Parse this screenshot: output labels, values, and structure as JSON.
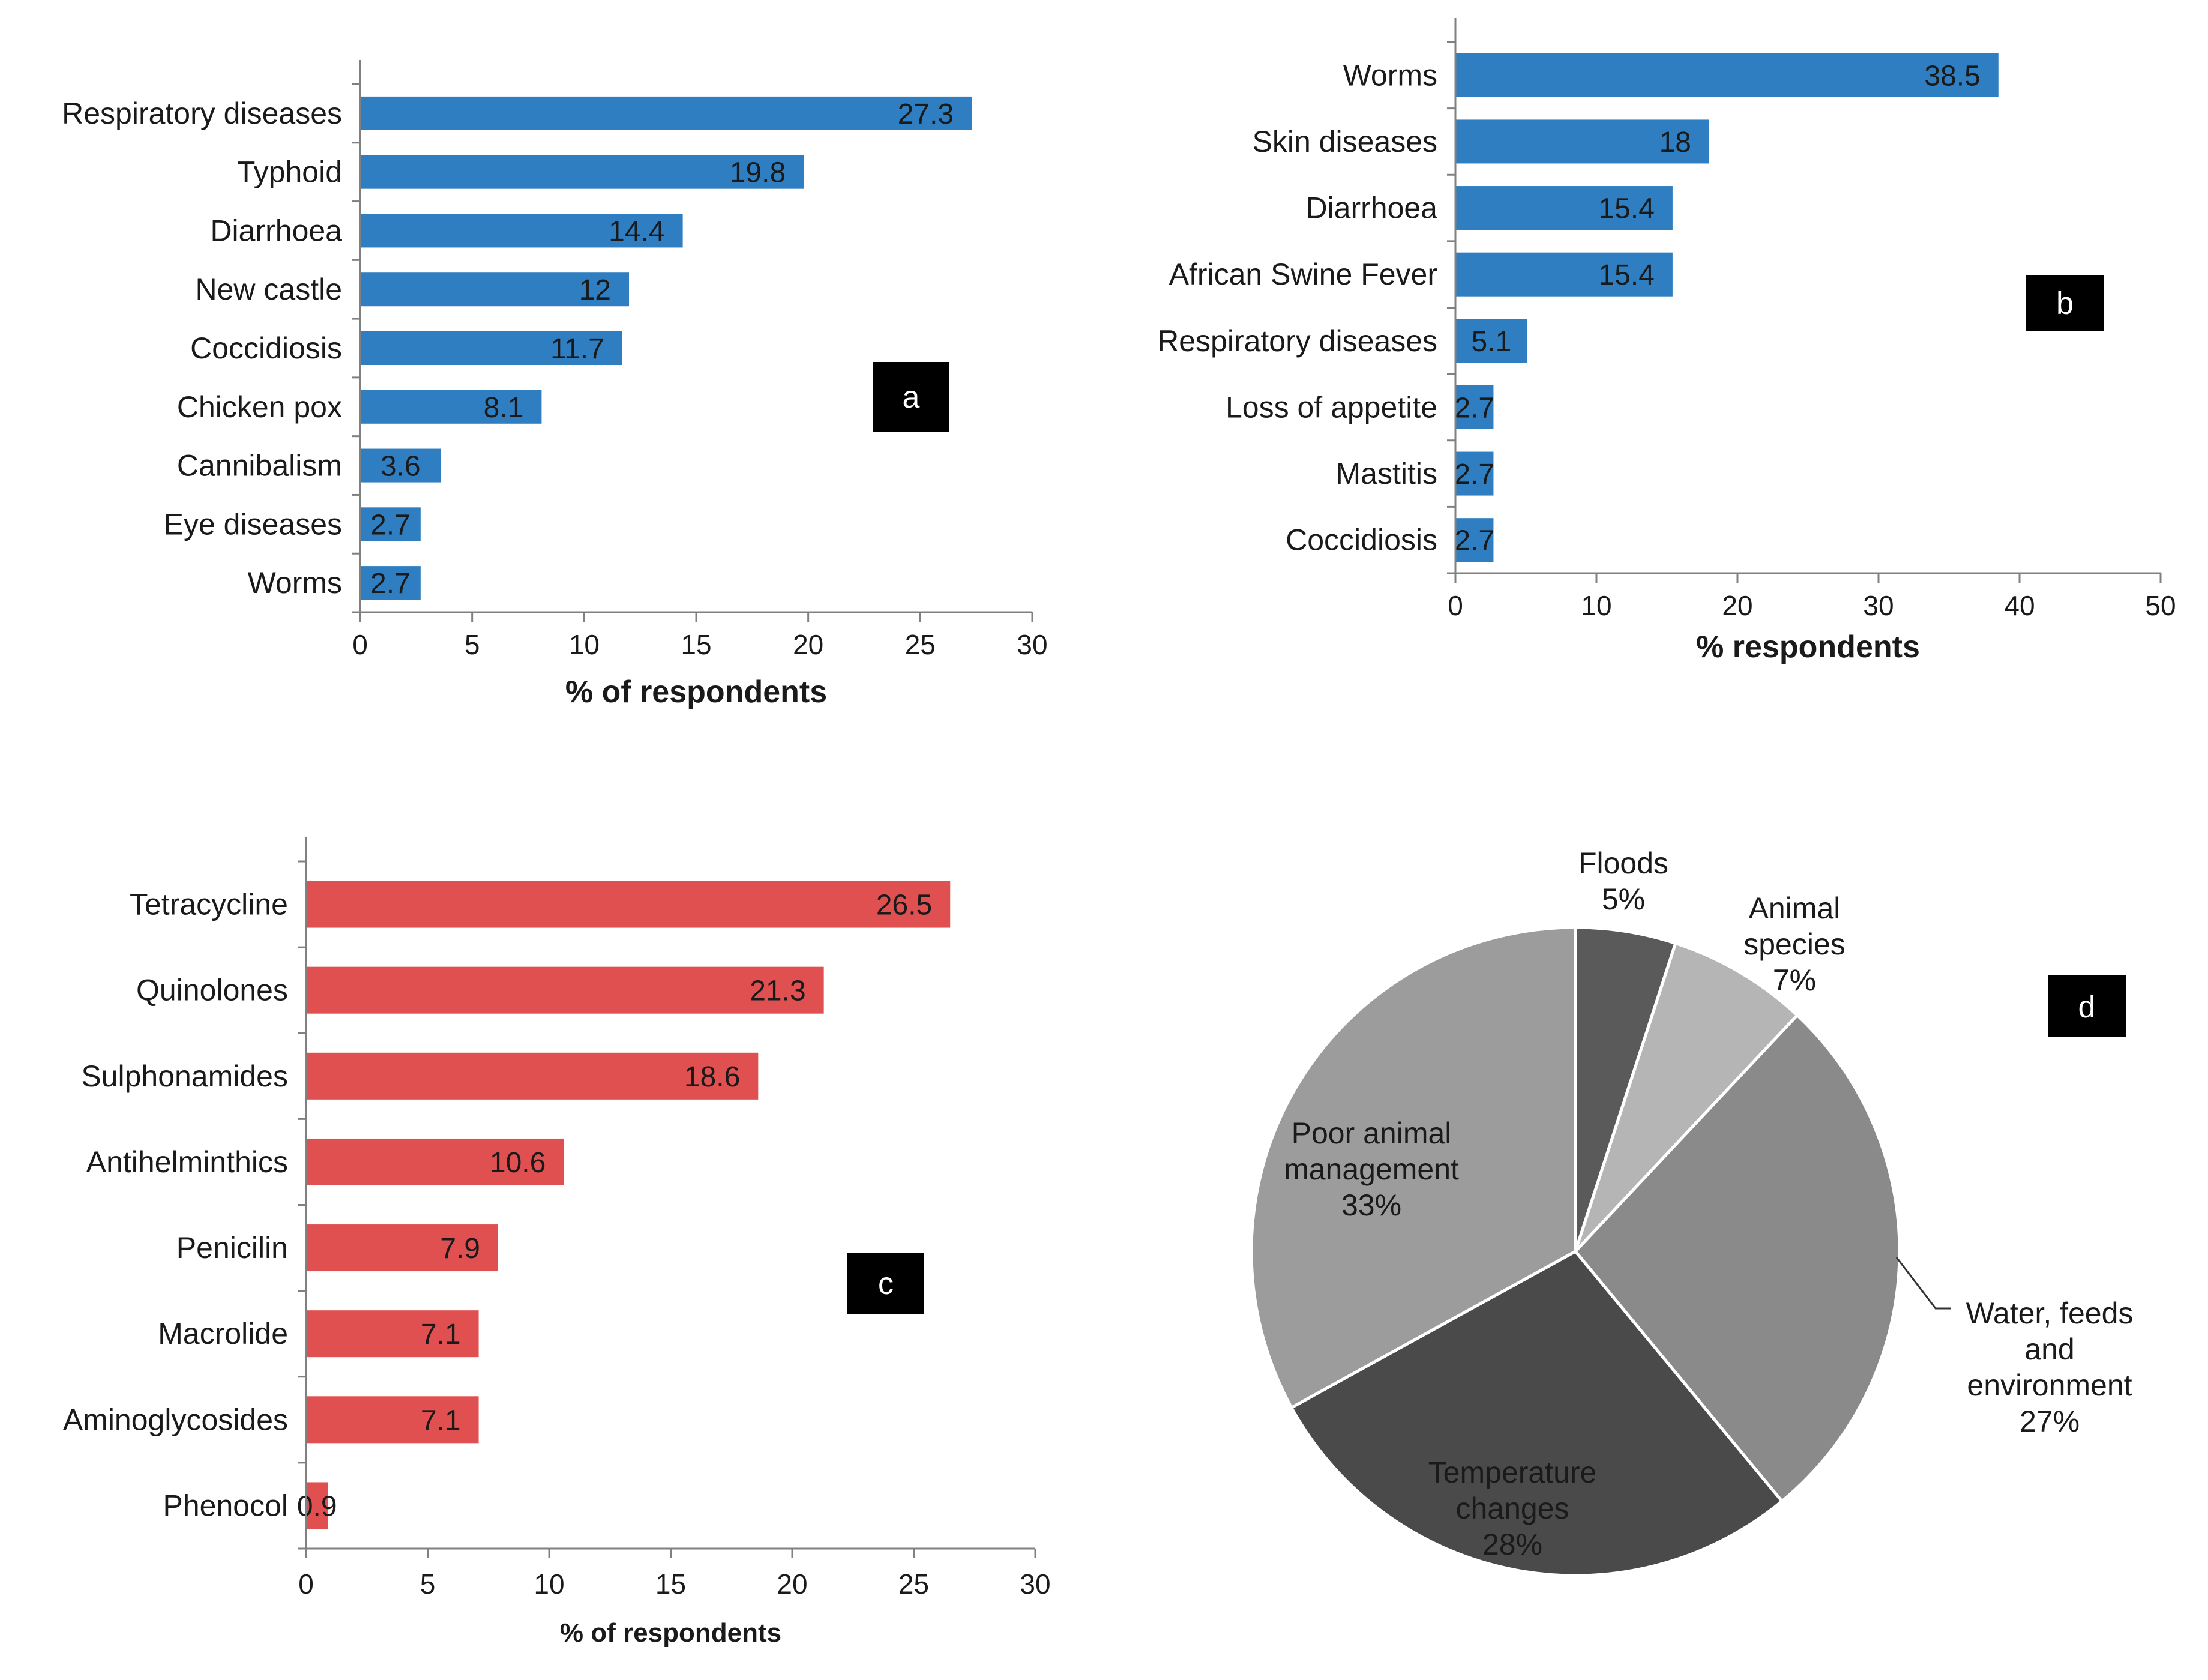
{
  "chart_data": [
    {
      "type": "bar",
      "orientation": "horizontal",
      "panel_label": "a",
      "categories": [
        "Respiratory diseases",
        "Typhoid",
        "Diarrhoea",
        "New castle",
        "Coccidiosis",
        "Chicken pox",
        "Cannibalism",
        "Eye diseases",
        "Worms"
      ],
      "values": [
        27.3,
        19.8,
        14.4,
        12,
        11.7,
        8.1,
        3.6,
        2.7,
        2.7
      ],
      "data_labels": [
        "27.3",
        "19.8",
        "14.4",
        "12",
        "11.7",
        "8.1",
        "3.6",
        "2.7",
        "2.7"
      ],
      "xlabel": "% of respondents",
      "xlim": [
        0,
        30
      ],
      "xticks": [
        0,
        5,
        10,
        15,
        20,
        25,
        30
      ],
      "bar_color": "#2e7ec1",
      "grid": false
    },
    {
      "type": "bar",
      "orientation": "horizontal",
      "panel_label": "b",
      "categories": [
        "Worms",
        "Skin diseases",
        "Diarrhoea",
        "African Swine Fever",
        "Respiratory diseases",
        "Loss of appetite",
        "Mastitis",
        "Coccidiosis"
      ],
      "values": [
        38.5,
        18,
        15.4,
        15.4,
        5.1,
        2.7,
        2.7,
        2.7
      ],
      "data_labels": [
        "38.5",
        "18",
        "15.4",
        "15.4",
        "5.1",
        "2.7",
        "2.7",
        "2.7"
      ],
      "xlabel": "% respondents",
      "xlim": [
        0,
        50
      ],
      "xticks": [
        0,
        10,
        20,
        30,
        40,
        50
      ],
      "bar_color": "#2e7ec1",
      "grid": false
    },
    {
      "type": "bar",
      "orientation": "horizontal",
      "panel_label": "c",
      "categories": [
        "Tetracycline",
        "Quinolones",
        "Sulphonamides",
        "Antihelminthics",
        "Penicilin",
        "Macrolide",
        "Aminoglycosides",
        "Phenocol"
      ],
      "values": [
        26.5,
        21.3,
        18.6,
        10.6,
        7.9,
        7.1,
        7.1,
        0.9
      ],
      "data_labels": [
        "26.5",
        "21.3",
        "18.6",
        "10.6",
        "7.9",
        "7.1",
        "7.1",
        "0.9"
      ],
      "xlabel": "% of respondents",
      "xlim": [
        0,
        30
      ],
      "xticks": [
        0,
        5,
        10,
        15,
        20,
        25,
        30
      ],
      "bar_color": "#e05050",
      "grid": false
    },
    {
      "type": "pie",
      "panel_label": "d",
      "slices": [
        {
          "label": "Floods",
          "pct_label": "5%",
          "value": 5,
          "color": "#5a5a5a"
        },
        {
          "label": "Animal species",
          "pct_label": "7%",
          "value": 7,
          "color": "#b5b5b5"
        },
        {
          "label": "Water, feeds and environment",
          "pct_label": "27%",
          "value": 27,
          "color": "#8a8a8a"
        },
        {
          "label": "Temperature changes",
          "pct_label": "28%",
          "value": 28,
          "color": "#4a4a4a"
        },
        {
          "label": "Poor animal management",
          "pct_label": "33%",
          "value": 33,
          "color": "#9c9c9c"
        }
      ]
    }
  ]
}
